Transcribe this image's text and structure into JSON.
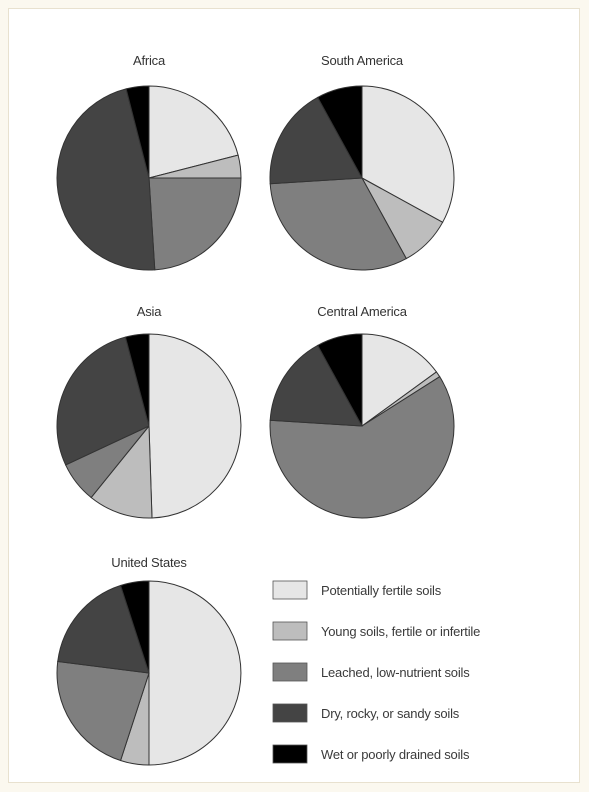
{
  "chart_data": {
    "type": "pie",
    "categories": [
      "Potentially fertile soils",
      "Young soils, fertile or infertile",
      "Leached, low-nutrient soils",
      "Dry, rocky, or sandy soils",
      "Wet or poorly drained soils"
    ],
    "colors": [
      "#e6e6e6",
      "#bdbdbd",
      "#7f7f7f",
      "#444444",
      "#000000"
    ],
    "charts": [
      {
        "title": "Africa",
        "values": [
          21,
          4,
          24,
          47,
          4
        ]
      },
      {
        "title": "South America",
        "values": [
          33,
          9,
          32,
          18,
          8
        ]
      },
      {
        "title": "Asia",
        "values": [
          48,
          11,
          7,
          27,
          4
        ]
      },
      {
        "title": "Central America",
        "values": [
          15,
          1,
          60,
          16,
          8
        ]
      },
      {
        "title": "United States",
        "values": [
          50,
          5,
          22,
          18,
          5
        ]
      }
    ],
    "legend_placement": "bottom-right"
  }
}
